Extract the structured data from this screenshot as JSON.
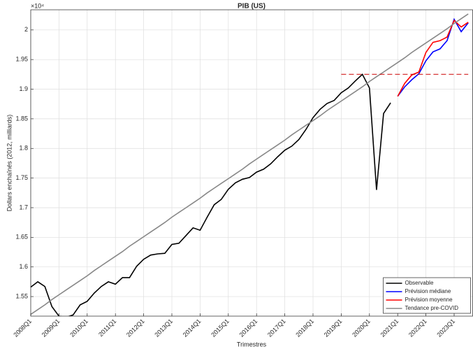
{
  "chart_data": {
    "type": "line",
    "title": "PIB (US)",
    "x_label": "Trimestres",
    "y_label": "Dollars enchaînés (2012, milliards)",
    "y_multiplier": "×10⁴",
    "categories": [
      "2008Q1",
      null,
      null,
      null,
      "2009Q1",
      null,
      null,
      null,
      "2010Q1",
      null,
      null,
      null,
      "2011Q1",
      null,
      null,
      null,
      "2012Q1",
      null,
      null,
      null,
      "2013Q1",
      null,
      null,
      null,
      "2014Q1",
      null,
      null,
      null,
      "2015Q1",
      null,
      null,
      null,
      "2016Q1",
      null,
      null,
      null,
      "2017Q1",
      null,
      null,
      null,
      "2018Q1",
      null,
      null,
      null,
      "2019Q1",
      null,
      null,
      null,
      "2020Q1",
      null,
      null,
      null,
      "2021Q1",
      null,
      null,
      null,
      "2022Q1",
      null,
      null,
      null,
      "2023Q1",
      null,
      null
    ],
    "ylim": [
      1.517,
      2.034
    ],
    "yticks": [
      1.55,
      1.6,
      1.65,
      1.7,
      1.75,
      1.8,
      1.85,
      1.9,
      1.95,
      2
    ],
    "grid": true,
    "legend": "bottom-right",
    "series": [
      {
        "name": "Observable",
        "color": "#000000",
        "values": [
          1.566,
          1.575,
          1.567,
          1.533,
          1.517,
          1.515,
          1.519,
          1.536,
          1.542,
          1.556,
          1.567,
          1.575,
          1.571,
          1.582,
          1.582,
          1.601,
          1.613,
          1.62,
          1.622,
          1.623,
          1.638,
          1.64,
          1.653,
          1.666,
          1.662,
          1.684,
          1.705,
          1.714,
          1.731,
          1.742,
          1.748,
          1.751,
          1.76,
          1.765,
          1.774,
          1.786,
          1.797,
          1.804,
          1.815,
          1.832,
          1.852,
          1.866,
          1.876,
          1.881,
          1.894,
          1.902,
          1.914,
          1.925,
          1.902,
          1.73,
          1.859,
          1.877,
          null,
          null,
          null,
          null,
          null,
          null,
          null,
          null,
          null,
          null,
          null
        ]
      },
      {
        "name": "Prévision médiane",
        "color": "#0000ff",
        "values": [
          null,
          null,
          null,
          null,
          null,
          null,
          null,
          null,
          null,
          null,
          null,
          null,
          null,
          null,
          null,
          null,
          null,
          null,
          null,
          null,
          null,
          null,
          null,
          null,
          null,
          null,
          null,
          null,
          null,
          null,
          null,
          null,
          null,
          null,
          null,
          null,
          null,
          null,
          null,
          null,
          null,
          null,
          null,
          null,
          null,
          null,
          null,
          null,
          null,
          null,
          null,
          null,
          1.888,
          1.904,
          1.916,
          1.926,
          1.948,
          1.963,
          1.968,
          1.982,
          2.018,
          1.997,
          2.012
        ]
      },
      {
        "name": "Prévision moyenne",
        "color": "#ff0000",
        "values": [
          null,
          null,
          null,
          null,
          null,
          null,
          null,
          null,
          null,
          null,
          null,
          null,
          null,
          null,
          null,
          null,
          null,
          null,
          null,
          null,
          null,
          null,
          null,
          null,
          null,
          null,
          null,
          null,
          null,
          null,
          null,
          null,
          null,
          null,
          null,
          null,
          null,
          null,
          null,
          null,
          null,
          null,
          null,
          null,
          null,
          null,
          null,
          null,
          null,
          null,
          null,
          null,
          1.888,
          1.91,
          1.924,
          1.929,
          1.962,
          1.979,
          1.982,
          1.988,
          2.016,
          2.005,
          2.013
        ]
      },
      {
        "name": "Tendance pre-COVID",
        "color": "#888888",
        "values": [
          1.52,
          1.528,
          1.536,
          1.545,
          1.553,
          1.561,
          1.569,
          1.577,
          1.585,
          1.594,
          1.602,
          1.61,
          1.618,
          1.626,
          1.635,
          1.643,
          1.651,
          1.659,
          1.667,
          1.675,
          1.684,
          1.692,
          1.7,
          1.708,
          1.716,
          1.725,
          1.733,
          1.741,
          1.749,
          1.757,
          1.765,
          1.774,
          1.782,
          1.79,
          1.798,
          1.806,
          1.814,
          1.823,
          1.831,
          1.839,
          1.847,
          1.855,
          1.864,
          1.872,
          1.88,
          1.888,
          1.896,
          1.904,
          1.913,
          1.921,
          1.929,
          1.937,
          1.945,
          1.953,
          1.962,
          1.97,
          1.978,
          1.986,
          1.994,
          2.002,
          2.011,
          2.019,
          2.027
        ]
      },
      {
        "color": "#cc0000",
        "dashed": true,
        "values": [
          null,
          null,
          null,
          null,
          null,
          null,
          null,
          null,
          null,
          null,
          null,
          null,
          null,
          null,
          null,
          null,
          null,
          null,
          null,
          null,
          null,
          null,
          null,
          null,
          null,
          null,
          null,
          null,
          null,
          null,
          null,
          null,
          null,
          null,
          null,
          null,
          null,
          null,
          null,
          null,
          null,
          null,
          null,
          null,
          1.925,
          1.925,
          1.925,
          1.925,
          1.925,
          1.925,
          1.925,
          1.925,
          1.925,
          1.925,
          1.925,
          1.925,
          1.925,
          1.925,
          1.925,
          1.925,
          1.925,
          1.925,
          1.925
        ]
      }
    ]
  }
}
